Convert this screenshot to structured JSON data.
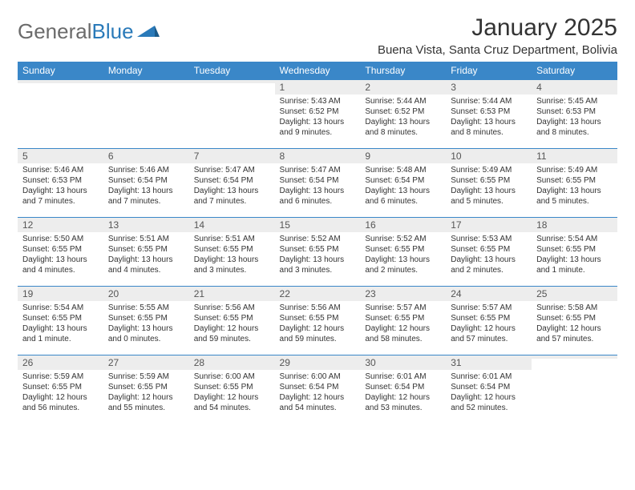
{
  "brand": {
    "part1": "General",
    "part2": "Blue"
  },
  "title": "January 2025",
  "location": "Buena Vista, Santa Cruz Department, Bolivia",
  "colors": {
    "header_bg": "#3a87c8",
    "header_text": "#ffffff",
    "daynum_bg": "#ededed",
    "border": "#3a87c8",
    "text": "#333333",
    "logo_gray": "#6b6b6b",
    "logo_blue": "#2a7ab9"
  },
  "typography": {
    "title_fontsize": 30,
    "location_fontsize": 15,
    "header_fontsize": 12,
    "daynum_fontsize": 12,
    "body_fontsize": 10
  },
  "weekdays": [
    "Sunday",
    "Monday",
    "Tuesday",
    "Wednesday",
    "Thursday",
    "Friday",
    "Saturday"
  ],
  "weeks": [
    [
      {
        "day": "",
        "sunrise": "",
        "sunset": "",
        "daylight": ""
      },
      {
        "day": "",
        "sunrise": "",
        "sunset": "",
        "daylight": ""
      },
      {
        "day": "",
        "sunrise": "",
        "sunset": "",
        "daylight": ""
      },
      {
        "day": "1",
        "sunrise": "Sunrise: 5:43 AM",
        "sunset": "Sunset: 6:52 PM",
        "daylight": "Daylight: 13 hours and 9 minutes."
      },
      {
        "day": "2",
        "sunrise": "Sunrise: 5:44 AM",
        "sunset": "Sunset: 6:52 PM",
        "daylight": "Daylight: 13 hours and 8 minutes."
      },
      {
        "day": "3",
        "sunrise": "Sunrise: 5:44 AM",
        "sunset": "Sunset: 6:53 PM",
        "daylight": "Daylight: 13 hours and 8 minutes."
      },
      {
        "day": "4",
        "sunrise": "Sunrise: 5:45 AM",
        "sunset": "Sunset: 6:53 PM",
        "daylight": "Daylight: 13 hours and 8 minutes."
      }
    ],
    [
      {
        "day": "5",
        "sunrise": "Sunrise: 5:46 AM",
        "sunset": "Sunset: 6:53 PM",
        "daylight": "Daylight: 13 hours and 7 minutes."
      },
      {
        "day": "6",
        "sunrise": "Sunrise: 5:46 AM",
        "sunset": "Sunset: 6:54 PM",
        "daylight": "Daylight: 13 hours and 7 minutes."
      },
      {
        "day": "7",
        "sunrise": "Sunrise: 5:47 AM",
        "sunset": "Sunset: 6:54 PM",
        "daylight": "Daylight: 13 hours and 7 minutes."
      },
      {
        "day": "8",
        "sunrise": "Sunrise: 5:47 AM",
        "sunset": "Sunset: 6:54 PM",
        "daylight": "Daylight: 13 hours and 6 minutes."
      },
      {
        "day": "9",
        "sunrise": "Sunrise: 5:48 AM",
        "sunset": "Sunset: 6:54 PM",
        "daylight": "Daylight: 13 hours and 6 minutes."
      },
      {
        "day": "10",
        "sunrise": "Sunrise: 5:49 AM",
        "sunset": "Sunset: 6:55 PM",
        "daylight": "Daylight: 13 hours and 5 minutes."
      },
      {
        "day": "11",
        "sunrise": "Sunrise: 5:49 AM",
        "sunset": "Sunset: 6:55 PM",
        "daylight": "Daylight: 13 hours and 5 minutes."
      }
    ],
    [
      {
        "day": "12",
        "sunrise": "Sunrise: 5:50 AM",
        "sunset": "Sunset: 6:55 PM",
        "daylight": "Daylight: 13 hours and 4 minutes."
      },
      {
        "day": "13",
        "sunrise": "Sunrise: 5:51 AM",
        "sunset": "Sunset: 6:55 PM",
        "daylight": "Daylight: 13 hours and 4 minutes."
      },
      {
        "day": "14",
        "sunrise": "Sunrise: 5:51 AM",
        "sunset": "Sunset: 6:55 PM",
        "daylight": "Daylight: 13 hours and 3 minutes."
      },
      {
        "day": "15",
        "sunrise": "Sunrise: 5:52 AM",
        "sunset": "Sunset: 6:55 PM",
        "daylight": "Daylight: 13 hours and 3 minutes."
      },
      {
        "day": "16",
        "sunrise": "Sunrise: 5:52 AM",
        "sunset": "Sunset: 6:55 PM",
        "daylight": "Daylight: 13 hours and 2 minutes."
      },
      {
        "day": "17",
        "sunrise": "Sunrise: 5:53 AM",
        "sunset": "Sunset: 6:55 PM",
        "daylight": "Daylight: 13 hours and 2 minutes."
      },
      {
        "day": "18",
        "sunrise": "Sunrise: 5:54 AM",
        "sunset": "Sunset: 6:55 PM",
        "daylight": "Daylight: 13 hours and 1 minute."
      }
    ],
    [
      {
        "day": "19",
        "sunrise": "Sunrise: 5:54 AM",
        "sunset": "Sunset: 6:55 PM",
        "daylight": "Daylight: 13 hours and 1 minute."
      },
      {
        "day": "20",
        "sunrise": "Sunrise: 5:55 AM",
        "sunset": "Sunset: 6:55 PM",
        "daylight": "Daylight: 13 hours and 0 minutes."
      },
      {
        "day": "21",
        "sunrise": "Sunrise: 5:56 AM",
        "sunset": "Sunset: 6:55 PM",
        "daylight": "Daylight: 12 hours and 59 minutes."
      },
      {
        "day": "22",
        "sunrise": "Sunrise: 5:56 AM",
        "sunset": "Sunset: 6:55 PM",
        "daylight": "Daylight: 12 hours and 59 minutes."
      },
      {
        "day": "23",
        "sunrise": "Sunrise: 5:57 AM",
        "sunset": "Sunset: 6:55 PM",
        "daylight": "Daylight: 12 hours and 58 minutes."
      },
      {
        "day": "24",
        "sunrise": "Sunrise: 5:57 AM",
        "sunset": "Sunset: 6:55 PM",
        "daylight": "Daylight: 12 hours and 57 minutes."
      },
      {
        "day": "25",
        "sunrise": "Sunrise: 5:58 AM",
        "sunset": "Sunset: 6:55 PM",
        "daylight": "Daylight: 12 hours and 57 minutes."
      }
    ],
    [
      {
        "day": "26",
        "sunrise": "Sunrise: 5:59 AM",
        "sunset": "Sunset: 6:55 PM",
        "daylight": "Daylight: 12 hours and 56 minutes."
      },
      {
        "day": "27",
        "sunrise": "Sunrise: 5:59 AM",
        "sunset": "Sunset: 6:55 PM",
        "daylight": "Daylight: 12 hours and 55 minutes."
      },
      {
        "day": "28",
        "sunrise": "Sunrise: 6:00 AM",
        "sunset": "Sunset: 6:55 PM",
        "daylight": "Daylight: 12 hours and 54 minutes."
      },
      {
        "day": "29",
        "sunrise": "Sunrise: 6:00 AM",
        "sunset": "Sunset: 6:54 PM",
        "daylight": "Daylight: 12 hours and 54 minutes."
      },
      {
        "day": "30",
        "sunrise": "Sunrise: 6:01 AM",
        "sunset": "Sunset: 6:54 PM",
        "daylight": "Daylight: 12 hours and 53 minutes."
      },
      {
        "day": "31",
        "sunrise": "Sunrise: 6:01 AM",
        "sunset": "Sunset: 6:54 PM",
        "daylight": "Daylight: 12 hours and 52 minutes."
      },
      {
        "day": "",
        "sunrise": "",
        "sunset": "",
        "daylight": ""
      }
    ]
  ]
}
